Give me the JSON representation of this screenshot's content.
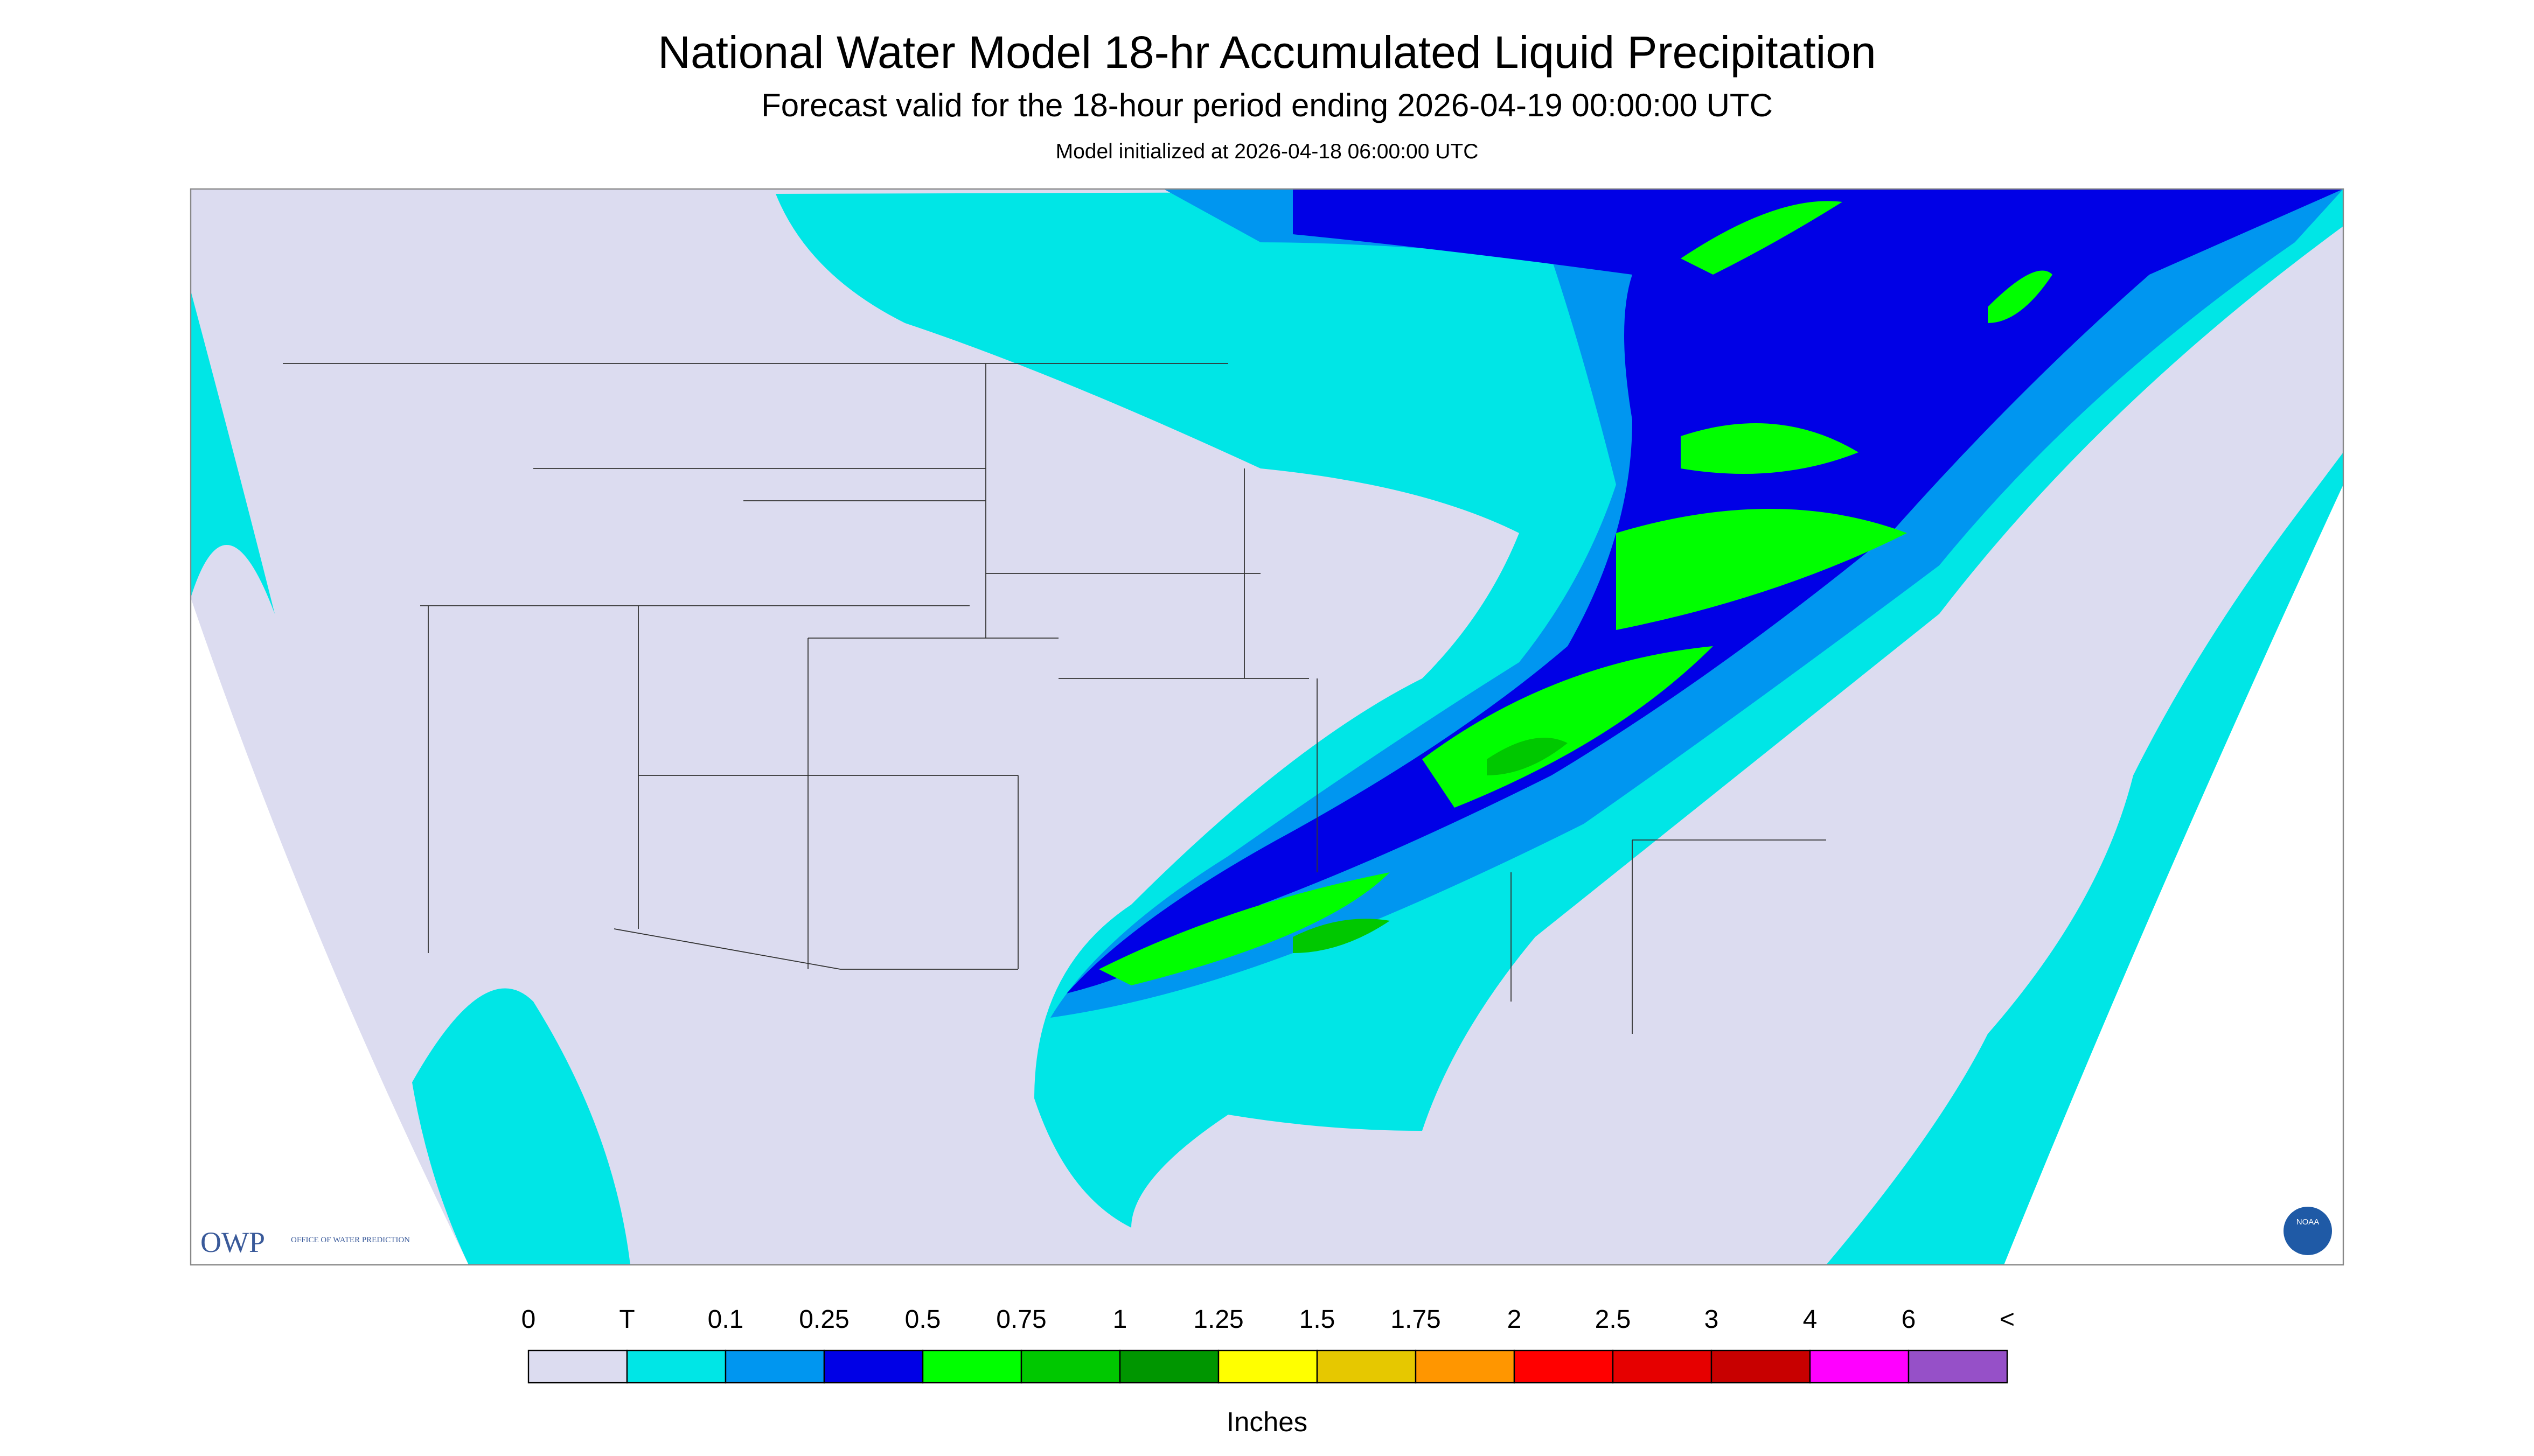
{
  "header": {
    "title": "National Water Model 18-hr Accumulated Liquid Precipitation",
    "subtitle": "Forecast valid for the 18-hour period ending 2026-04-19 00:00:00 UTC",
    "init": "Model initialized at 2026-04-18 06:00:00 UTC"
  },
  "legend": {
    "labels": [
      "0",
      "T",
      "0.1",
      "0.25",
      "0.5",
      "0.75",
      "1",
      "1.25",
      "1.5",
      "1.75",
      "2",
      "2.5",
      "3",
      "4",
      "6",
      "<"
    ],
    "colors": [
      "#dcdcf0",
      "#00e6e6",
      "#0096f0",
      "#0000e6",
      "#00ff00",
      "#00c800",
      "#009600",
      "#ffff00",
      "#e6c800",
      "#ff9600",
      "#ff0000",
      "#e60000",
      "#c80000",
      "#ff00ff",
      "#9650c8"
    ],
    "unit": "Inches"
  },
  "logos": {
    "owp": "OWP",
    "owp_full": "OFFICE OF WATER PREDICTION",
    "noaa": "NOAA"
  }
}
